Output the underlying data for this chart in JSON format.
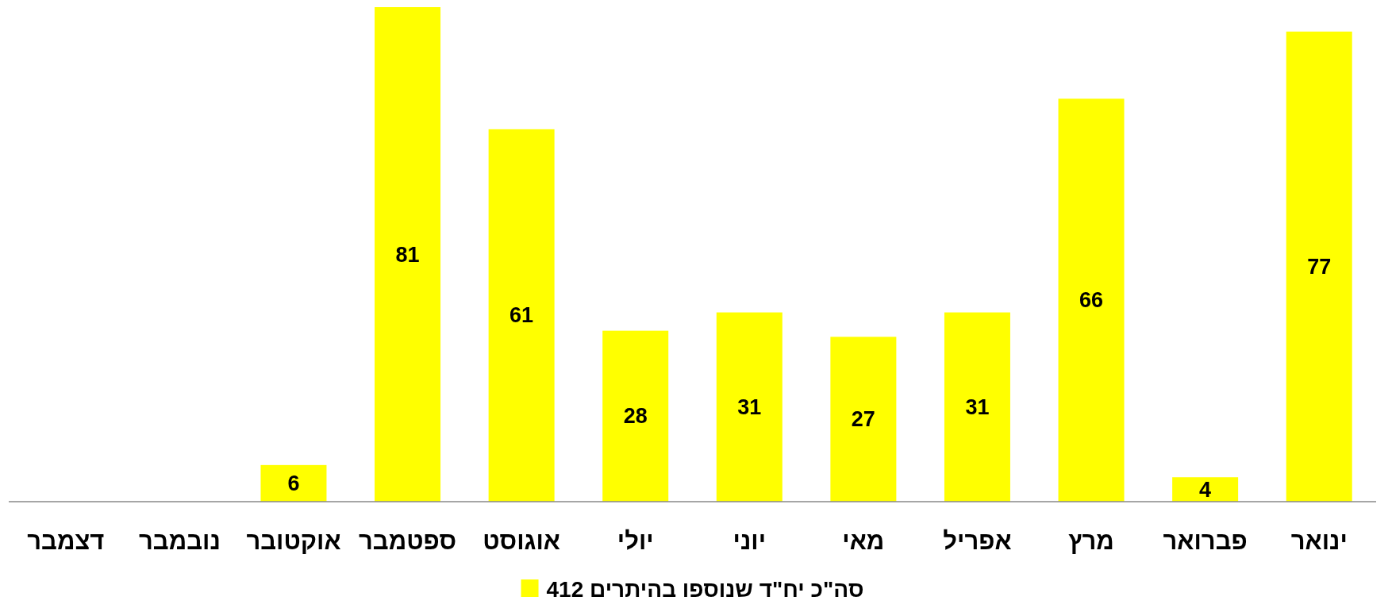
{
  "chart_data": {
    "type": "bar",
    "categories": [
      "דצמבר",
      "נובמבר",
      "אוקטובר",
      "ספטמבר",
      "אוגוסט",
      "יולי",
      "יוני",
      "מאי",
      "אפריל",
      "מרץ",
      "פברואר",
      "ינואר"
    ],
    "series": [
      {
        "name": "סה\"כ יח\"ד שנוספו בהיתרים 412",
        "color": "#ffff00",
        "values": [
          null,
          null,
          6,
          81,
          61,
          28,
          31,
          27,
          31,
          66,
          4,
          77
        ]
      }
    ],
    "data_labels": true,
    "legend": "bottom",
    "grid": false
  }
}
